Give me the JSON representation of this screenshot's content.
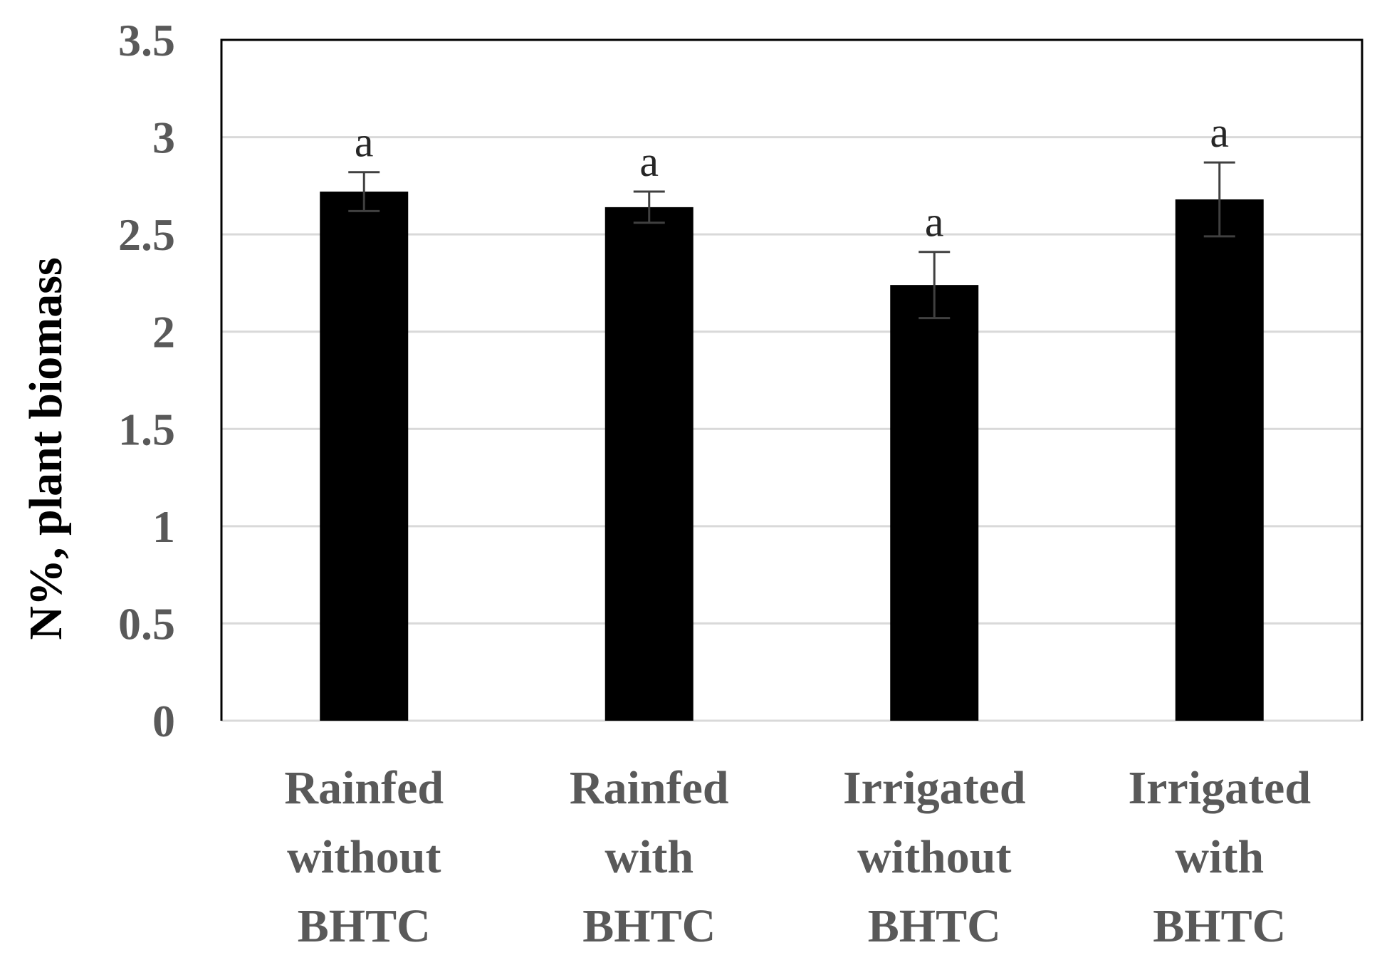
{
  "chart_data": {
    "type": "bar",
    "title": "",
    "xlabel": "",
    "ylabel": "N%, plant biomass",
    "ylim": [
      0,
      3.5
    ],
    "yticks": [
      0,
      0.5,
      1,
      1.5,
      2,
      2.5,
      3,
      3.5
    ],
    "ytick_labels": [
      "0",
      "0.5",
      "1",
      "1.5",
      "2",
      "2.5",
      "3",
      "3.5"
    ],
    "grid": true,
    "legend": "none",
    "categories": [
      [
        "Rainfed",
        "without",
        "BHTC"
      ],
      [
        "Rainfed",
        "with",
        "BHTC"
      ],
      [
        "Irrigated",
        "without",
        "BHTC"
      ],
      [
        "Irrigated",
        "with",
        "BHTC"
      ]
    ],
    "values": [
      2.72,
      2.64,
      2.24,
      2.68
    ],
    "errors": [
      0.1,
      0.08,
      0.17,
      0.19
    ],
    "significance_labels": [
      "a",
      "a",
      "a",
      "a"
    ],
    "colors": {
      "bar": "#000000",
      "grid": "#d9d9d9",
      "frame": "#000000",
      "error_bar": "#404040"
    }
  }
}
